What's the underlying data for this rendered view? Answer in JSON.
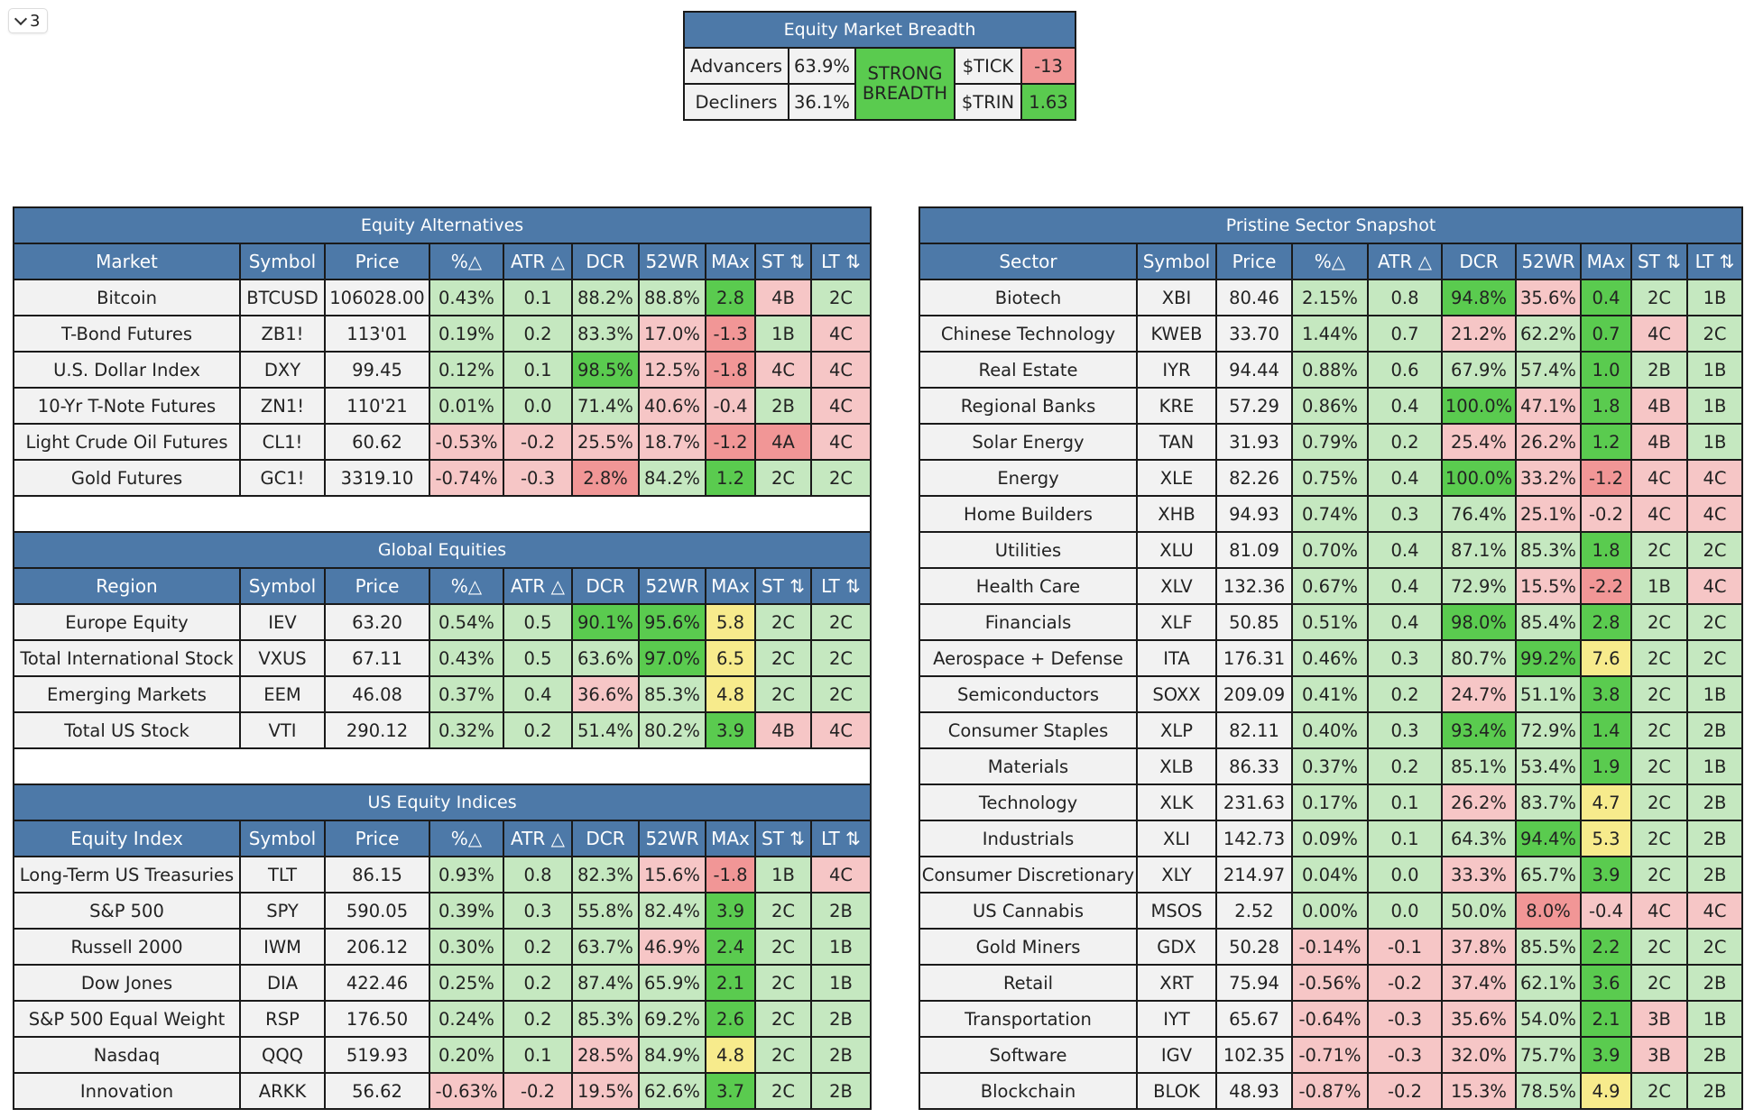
{
  "toggle": {
    "count": "3"
  },
  "breadth": {
    "title": "Equity Market Breadth",
    "advancers_label": "Advancers",
    "advancers_value": "63.9%",
    "decliners_label": "Decliners",
    "decliners_value": "36.1%",
    "status": "STRONG BREADTH",
    "tick_label": "$TICK",
    "tick_value": "-13",
    "trin_label": "$TRIN",
    "trin_value": "1.63"
  },
  "alt_columns": [
    "Symbol",
    "Price",
    "%△",
    "ATR △",
    "DCR",
    "52WR",
    "MAx",
    "ST ⇅",
    "LT ⇅"
  ],
  "sections": [
    {
      "title": "Equity Alternatives",
      "first_col": "Market",
      "rows": [
        {
          "c": [
            "Bitcoin",
            "BTCUSD",
            "106028.00",
            "0.43%",
            "0.1",
            "88.2%",
            "88.8%",
            "2.8",
            "4B",
            "2C"
          ],
          "k": [
            "n",
            "n",
            "n",
            "g",
            "g",
            "g",
            "g",
            "dg",
            "r",
            "g"
          ]
        },
        {
          "c": [
            "T-Bond Futures",
            "ZB1!",
            "113'01",
            "0.19%",
            "0.2",
            "83.3%",
            "17.0%",
            "-1.3",
            "1B",
            "4C"
          ],
          "k": [
            "n",
            "n",
            "n",
            "g",
            "g",
            "g",
            "r",
            "dr",
            "g",
            "r"
          ]
        },
        {
          "c": [
            "U.S. Dollar Index",
            "DXY",
            "99.45",
            "0.12%",
            "0.1",
            "98.5%",
            "12.5%",
            "-1.8",
            "4C",
            "4C"
          ],
          "k": [
            "n",
            "n",
            "n",
            "g",
            "g",
            "dg",
            "r",
            "dr",
            "r",
            "r"
          ]
        },
        {
          "c": [
            "10-Yr T-Note Futures",
            "ZN1!",
            "110'21",
            "0.01%",
            "0.0",
            "71.4%",
            "40.6%",
            "-0.4",
            "2B",
            "4C"
          ],
          "k": [
            "n",
            "n",
            "n",
            "g",
            "g",
            "g",
            "r",
            "r",
            "g",
            "r"
          ]
        },
        {
          "c": [
            "Light Crude Oil Futures",
            "CL1!",
            "60.62",
            "-0.53%",
            "-0.2",
            "25.5%",
            "18.7%",
            "-1.2",
            "4A",
            "4C"
          ],
          "k": [
            "n",
            "n",
            "n",
            "r",
            "r",
            "r",
            "r",
            "dr",
            "dr",
            "r"
          ]
        },
        {
          "c": [
            "Gold Futures",
            "GC1!",
            "3319.10",
            "-0.74%",
            "-0.3",
            "2.8%",
            "84.2%",
            "1.2",
            "2C",
            "2C"
          ],
          "k": [
            "n",
            "n",
            "n",
            "r",
            "r",
            "dr",
            "g",
            "dg",
            "g",
            "g"
          ]
        }
      ]
    },
    {
      "title": "Global Equities",
      "first_col": "Region",
      "rows": [
        {
          "c": [
            "Europe Equity",
            "IEV",
            "63.20",
            "0.54%",
            "0.5",
            "90.1%",
            "95.6%",
            "5.8",
            "2C",
            "2C"
          ],
          "k": [
            "n",
            "n",
            "n",
            "g",
            "g",
            "dg",
            "dg",
            "y",
            "g",
            "g"
          ]
        },
        {
          "c": [
            "Total International Stock",
            "VXUS",
            "67.11",
            "0.43%",
            "0.5",
            "63.6%",
            "97.0%",
            "6.5",
            "2C",
            "2C"
          ],
          "k": [
            "n",
            "n",
            "n",
            "g",
            "g",
            "g",
            "dg",
            "y",
            "g",
            "g"
          ]
        },
        {
          "c": [
            "Emerging Markets",
            "EEM",
            "46.08",
            "0.37%",
            "0.4",
            "36.6%",
            "85.3%",
            "4.8",
            "2C",
            "2C"
          ],
          "k": [
            "n",
            "n",
            "n",
            "g",
            "g",
            "r",
            "g",
            "y",
            "g",
            "g"
          ]
        },
        {
          "c": [
            "Total US Stock",
            "VTI",
            "290.12",
            "0.32%",
            "0.2",
            "51.4%",
            "80.2%",
            "3.9",
            "4B",
            "4C"
          ],
          "k": [
            "n",
            "n",
            "n",
            "g",
            "g",
            "g",
            "g",
            "dg",
            "r",
            "r"
          ]
        }
      ]
    },
    {
      "title": "US Equity Indices",
      "first_col": "Equity Index",
      "rows": [
        {
          "c": [
            "Long-Term US Treasuries",
            "TLT",
            "86.15",
            "0.93%",
            "0.8",
            "82.3%",
            "15.6%",
            "-1.8",
            "1B",
            "4C"
          ],
          "k": [
            "n",
            "n",
            "n",
            "g",
            "g",
            "g",
            "r",
            "dr",
            "g",
            "r"
          ]
        },
        {
          "c": [
            "S&P 500",
            "SPY",
            "590.05",
            "0.39%",
            "0.3",
            "55.8%",
            "82.4%",
            "3.9",
            "2C",
            "2B"
          ],
          "k": [
            "n",
            "n",
            "n",
            "g",
            "g",
            "g",
            "g",
            "dg",
            "g",
            "g"
          ]
        },
        {
          "c": [
            "Russell 2000",
            "IWM",
            "206.12",
            "0.30%",
            "0.2",
            "63.7%",
            "46.9%",
            "2.4",
            "2C",
            "1B"
          ],
          "k": [
            "n",
            "n",
            "n",
            "g",
            "g",
            "g",
            "r",
            "dg",
            "g",
            "g"
          ]
        },
        {
          "c": [
            "Dow Jones",
            "DIA",
            "422.46",
            "0.25%",
            "0.2",
            "87.4%",
            "65.9%",
            "2.1",
            "2C",
            "1B"
          ],
          "k": [
            "n",
            "n",
            "n",
            "g",
            "g",
            "g",
            "g",
            "dg",
            "g",
            "g"
          ]
        },
        {
          "c": [
            "S&P 500 Equal Weight",
            "RSP",
            "176.50",
            "0.24%",
            "0.2",
            "85.3%",
            "69.2%",
            "2.6",
            "2C",
            "2B"
          ],
          "k": [
            "n",
            "n",
            "n",
            "g",
            "g",
            "g",
            "g",
            "dg",
            "g",
            "g"
          ]
        },
        {
          "c": [
            "Nasdaq",
            "QQQ",
            "519.93",
            "0.20%",
            "0.1",
            "28.5%",
            "84.9%",
            "4.8",
            "2C",
            "2B"
          ],
          "k": [
            "n",
            "n",
            "n",
            "g",
            "g",
            "r",
            "g",
            "y",
            "g",
            "g"
          ]
        },
        {
          "c": [
            "Innovation",
            "ARKK",
            "56.62",
            "-0.63%",
            "-0.2",
            "19.5%",
            "62.6%",
            "3.7",
            "2C",
            "2B"
          ],
          "k": [
            "n",
            "n",
            "n",
            "r",
            "r",
            "r",
            "g",
            "dg",
            "g",
            "g"
          ]
        }
      ]
    }
  ],
  "sector_table": {
    "title": "Pristine Sector Snapshot",
    "first_col": "Sector",
    "rows": [
      {
        "c": [
          "Biotech",
          "XBI",
          "80.46",
          "2.15%",
          "0.8",
          "94.8%",
          "35.6%",
          "0.4",
          "2C",
          "1B"
        ],
        "k": [
          "n",
          "n",
          "n",
          "g",
          "g",
          "dg",
          "r",
          "dg",
          "g",
          "g"
        ]
      },
      {
        "c": [
          "Chinese Technology",
          "KWEB",
          "33.70",
          "1.44%",
          "0.7",
          "21.2%",
          "62.2%",
          "0.7",
          "4C",
          "2C"
        ],
        "k": [
          "n",
          "n",
          "n",
          "g",
          "g",
          "r",
          "g",
          "dg",
          "r",
          "g"
        ]
      },
      {
        "c": [
          "Real Estate",
          "IYR",
          "94.44",
          "0.88%",
          "0.6",
          "67.9%",
          "57.4%",
          "1.0",
          "2B",
          "1B"
        ],
        "k": [
          "n",
          "n",
          "n",
          "g",
          "g",
          "g",
          "g",
          "dg",
          "g",
          "g"
        ]
      },
      {
        "c": [
          "Regional Banks",
          "KRE",
          "57.29",
          "0.86%",
          "0.4",
          "100.0%",
          "47.1%",
          "1.8",
          "4B",
          "1B"
        ],
        "k": [
          "n",
          "n",
          "n",
          "g",
          "g",
          "dg",
          "r",
          "dg",
          "r",
          "g"
        ]
      },
      {
        "c": [
          "Solar Energy",
          "TAN",
          "31.93",
          "0.79%",
          "0.2",
          "25.4%",
          "26.2%",
          "1.2",
          "4B",
          "1B"
        ],
        "k": [
          "n",
          "n",
          "n",
          "g",
          "g",
          "r",
          "r",
          "dg",
          "r",
          "g"
        ]
      },
      {
        "c": [
          "Energy",
          "XLE",
          "82.26",
          "0.75%",
          "0.4",
          "100.0%",
          "33.2%",
          "-1.2",
          "4C",
          "4C"
        ],
        "k": [
          "n",
          "n",
          "n",
          "g",
          "g",
          "dg",
          "r",
          "dr",
          "r",
          "r"
        ]
      },
      {
        "c": [
          "Home Builders",
          "XHB",
          "94.93",
          "0.74%",
          "0.3",
          "76.4%",
          "25.1%",
          "-0.2",
          "4C",
          "4C"
        ],
        "k": [
          "n",
          "n",
          "n",
          "g",
          "g",
          "g",
          "r",
          "r",
          "r",
          "r"
        ]
      },
      {
        "c": [
          "Utilities",
          "XLU",
          "81.09",
          "0.70%",
          "0.4",
          "87.1%",
          "85.3%",
          "1.8",
          "2C",
          "2C"
        ],
        "k": [
          "n",
          "n",
          "n",
          "g",
          "g",
          "g",
          "g",
          "dg",
          "g",
          "g"
        ]
      },
      {
        "c": [
          "Health Care",
          "XLV",
          "132.36",
          "0.67%",
          "0.4",
          "72.9%",
          "15.5%",
          "-2.2",
          "1B",
          "4C"
        ],
        "k": [
          "n",
          "n",
          "n",
          "g",
          "g",
          "g",
          "r",
          "dr",
          "g",
          "r"
        ]
      },
      {
        "c": [
          "Financials",
          "XLF",
          "50.85",
          "0.51%",
          "0.4",
          "98.0%",
          "85.4%",
          "2.8",
          "2C",
          "2C"
        ],
        "k": [
          "n",
          "n",
          "n",
          "g",
          "g",
          "dg",
          "g",
          "dg",
          "g",
          "g"
        ]
      },
      {
        "c": [
          "Aerospace + Defense",
          "ITA",
          "176.31",
          "0.46%",
          "0.3",
          "80.7%",
          "99.2%",
          "7.6",
          "2C",
          "2C"
        ],
        "k": [
          "n",
          "n",
          "n",
          "g",
          "g",
          "g",
          "dg",
          "y",
          "g",
          "g"
        ]
      },
      {
        "c": [
          "Semiconductors",
          "SOXX",
          "209.09",
          "0.41%",
          "0.2",
          "24.7%",
          "51.1%",
          "3.8",
          "2C",
          "1B"
        ],
        "k": [
          "n",
          "n",
          "n",
          "g",
          "g",
          "r",
          "g",
          "dg",
          "g",
          "g"
        ]
      },
      {
        "c": [
          "Consumer Staples",
          "XLP",
          "82.11",
          "0.40%",
          "0.3",
          "93.4%",
          "72.9%",
          "1.4",
          "2C",
          "2B"
        ],
        "k": [
          "n",
          "n",
          "n",
          "g",
          "g",
          "dg",
          "g",
          "dg",
          "g",
          "g"
        ]
      },
      {
        "c": [
          "Materials",
          "XLB",
          "86.33",
          "0.37%",
          "0.2",
          "85.1%",
          "53.4%",
          "1.9",
          "2C",
          "1B"
        ],
        "k": [
          "n",
          "n",
          "n",
          "g",
          "g",
          "g",
          "g",
          "dg",
          "g",
          "g"
        ]
      },
      {
        "c": [
          "Technology",
          "XLK",
          "231.63",
          "0.17%",
          "0.1",
          "26.2%",
          "83.7%",
          "4.7",
          "2C",
          "2B"
        ],
        "k": [
          "n",
          "n",
          "n",
          "g",
          "g",
          "r",
          "g",
          "y",
          "g",
          "g"
        ]
      },
      {
        "c": [
          "Industrials",
          "XLI",
          "142.73",
          "0.09%",
          "0.1",
          "64.3%",
          "94.4%",
          "5.3",
          "2C",
          "2B"
        ],
        "k": [
          "n",
          "n",
          "n",
          "g",
          "g",
          "g",
          "dg",
          "y",
          "g",
          "g"
        ]
      },
      {
        "c": [
          "Consumer Discretionary",
          "XLY",
          "214.97",
          "0.04%",
          "0.0",
          "33.3%",
          "65.7%",
          "3.9",
          "2C",
          "2B"
        ],
        "k": [
          "n",
          "n",
          "n",
          "g",
          "g",
          "r",
          "g",
          "dg",
          "g",
          "g"
        ]
      },
      {
        "c": [
          "US Cannabis",
          "MSOS",
          "2.52",
          "0.00%",
          "0.0",
          "50.0%",
          "8.0%",
          "-0.4",
          "4C",
          "4C"
        ],
        "k": [
          "n",
          "n",
          "n",
          "g",
          "g",
          "g",
          "dr",
          "r",
          "r",
          "r"
        ]
      },
      {
        "c": [
          "Gold Miners",
          "GDX",
          "50.28",
          "-0.14%",
          "-0.1",
          "37.8%",
          "85.5%",
          "2.2",
          "2C",
          "2C"
        ],
        "k": [
          "n",
          "n",
          "n",
          "r",
          "r",
          "r",
          "g",
          "dg",
          "g",
          "g"
        ]
      },
      {
        "c": [
          "Retail",
          "XRT",
          "75.94",
          "-0.56%",
          "-0.2",
          "37.4%",
          "62.1%",
          "3.6",
          "2C",
          "2B"
        ],
        "k": [
          "n",
          "n",
          "n",
          "r",
          "r",
          "r",
          "g",
          "dg",
          "g",
          "g"
        ]
      },
      {
        "c": [
          "Transportation",
          "IYT",
          "65.67",
          "-0.64%",
          "-0.3",
          "35.6%",
          "54.0%",
          "2.1",
          "3B",
          "1B"
        ],
        "k": [
          "n",
          "n",
          "n",
          "r",
          "r",
          "r",
          "g",
          "dg",
          "r",
          "g"
        ]
      },
      {
        "c": [
          "Software",
          "IGV",
          "102.35",
          "-0.71%",
          "-0.3",
          "32.0%",
          "75.7%",
          "3.9",
          "3B",
          "2B"
        ],
        "k": [
          "n",
          "n",
          "n",
          "r",
          "r",
          "r",
          "g",
          "dg",
          "r",
          "g"
        ]
      },
      {
        "c": [
          "Blockchain",
          "BLOK",
          "48.93",
          "-0.87%",
          "-0.2",
          "15.3%",
          "78.5%",
          "4.9",
          "2C",
          "2B"
        ],
        "k": [
          "n",
          "n",
          "n",
          "r",
          "r",
          "r",
          "g",
          "y",
          "g",
          "g"
        ]
      }
    ]
  },
  "colors": {
    "header_blue": "#4d79a8",
    "neutral": "#f2f2f2",
    "light_green": "#c5e8c0",
    "strong_green": "#5acb4f",
    "light_red": "#f6c6c6",
    "strong_red": "#f19696",
    "yellow": "#f7eb8c"
  }
}
